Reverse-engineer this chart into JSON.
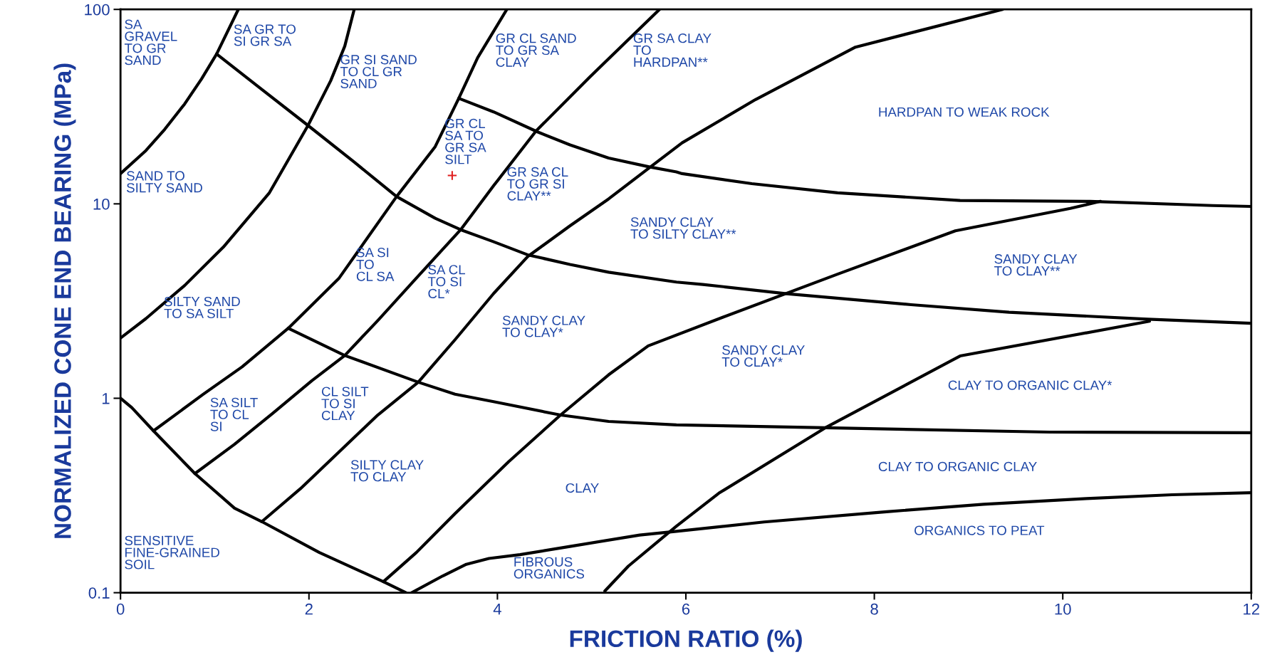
{
  "chart_data": {
    "type": "line",
    "xlabel": "FRICTION RATIO (%)",
    "ylabel": "NORMALIZED CONE END BEARING (MPa)",
    "xlim": [
      0,
      12
    ],
    "xticks": [
      0,
      2,
      4,
      6,
      8,
      10,
      12
    ],
    "ylim": [
      0.1,
      100
    ],
    "yticks": [
      {
        "value": 0.1,
        "label": "0.1"
      },
      1,
      10,
      100
    ],
    "log": "y",
    "grid": false,
    "line_style": "solid",
    "series": [
      {
        "color": "#000000",
        "x": [
          0,
          0.27,
          0.47,
          0.68,
          0.86,
          1.02,
          1.25
        ],
        "values": [
          14.3,
          18.8,
          24.2,
          32.6,
          43.9,
          59,
          100
        ]
      },
      {
        "color": "#000000",
        "x": [
          0,
          0.27,
          0.68,
          1.09,
          1.58,
          1.99,
          2.23,
          2.38,
          2.48
        ],
        "values": [
          2.04,
          2.57,
          3.8,
          5.98,
          11.4,
          25.3,
          42.9,
          64.7,
          100
        ]
      },
      {
        "color": "#000000",
        "x": [
          0.35,
          0.88,
          1.29,
          1.78,
          2.32,
          2.93,
          3.34,
          3.59,
          3.79,
          4.1
        ],
        "values": [
          0.68,
          1.05,
          1.45,
          2.29,
          4.15,
          10.9,
          19.7,
          34.9,
          56.4,
          100
        ]
      },
      {
        "color": "#000000",
        "x": [
          0.79,
          1.21,
          1.62,
          2.03,
          2.38,
          2.73,
          3.14,
          3.61,
          3.96,
          4.41,
          4.98,
          5.72
        ],
        "values": [
          0.41,
          0.58,
          0.84,
          1.23,
          1.66,
          2.51,
          4.15,
          7.36,
          12.4,
          23.7,
          44.9,
          100
        ]
      },
      {
        "color": "#000000",
        "x": [
          1.5,
          1.91,
          2.32,
          2.73,
          3.16,
          3.55,
          3.96,
          4.32,
          4.77,
          5.18,
          5.64,
          5.96,
          6.74,
          7.8,
          9.36
        ],
        "values": [
          0.232,
          0.343,
          0.53,
          0.82,
          1.21,
          2.0,
          3.46,
          5.35,
          7.71,
          10.6,
          15.7,
          20.6,
          34.4,
          64,
          100
        ]
      },
      {
        "color": "#000000",
        "x": [
          2.79,
          3.14,
          3.55,
          4.12,
          4.67,
          5.18,
          5.6,
          6.4,
          7.61,
          8.86,
          10.08,
          10.4
        ],
        "values": [
          0.114,
          0.161,
          0.255,
          0.472,
          0.82,
          1.32,
          1.86,
          2.62,
          4.35,
          7.26,
          9.48,
          10.3
        ]
      },
      {
        "color": "#000000",
        "x": [
          5.14,
          5.39,
          5.9,
          6.35,
          7.48,
          8.91,
          10.92
        ],
        "values": [
          0.102,
          0.137,
          0.22,
          0.325,
          0.705,
          1.65,
          2.49
        ]
      },
      {
        "color": "#000000",
        "x": [
          1.02,
          1.49,
          1.99,
          2.48,
          2.93,
          3.34,
          3.61,
          3.95,
          4.32,
          4.77,
          5.18,
          5.9,
          6.18,
          7.07,
          8.39,
          9.43,
          10.9,
          12
        ],
        "values": [
          59,
          39.1,
          25.3,
          16.4,
          10.9,
          8.43,
          7.36,
          6.41,
          5.47,
          4.88,
          4.45,
          3.96,
          3.85,
          3.45,
          3.03,
          2.77,
          2.55,
          2.43
        ]
      },
      {
        "color": "#000000",
        "x": [
          3.59,
          3.96,
          4.43,
          4.77,
          5.18,
          5.61,
          5.9,
          5.96,
          6.7,
          7.61,
          8.91,
          10.29,
          11.59,
          12
        ],
        "values": [
          34.9,
          29.7,
          23.4,
          20.1,
          17.2,
          15.5,
          14.6,
          14.3,
          12.7,
          11.4,
          10.4,
          10.3,
          9.8,
          9.7
        ]
      },
      {
        "color": "#000000",
        "x": [
          1.78,
          2.38,
          3.16,
          3.55,
          3.96,
          4.67,
          5.18,
          5.9,
          7.48,
          9.86,
          12
        ],
        "values": [
          2.29,
          1.66,
          1.21,
          1.05,
          0.96,
          0.82,
          0.76,
          0.73,
          0.705,
          0.67,
          0.665
        ]
      },
      {
        "color": "#000000",
        "x": [
          0,
          0.12,
          0.35,
          0.79,
          1.21,
          1.5,
          2.11,
          2.79,
          3.03
        ],
        "values": [
          1.0,
          0.895,
          0.68,
          0.41,
          0.272,
          0.232,
          0.161,
          0.114,
          0.1
        ]
      },
      {
        "color": "#000000",
        "x": [
          3.09,
          3.42,
          3.67,
          3.91,
          4.24,
          4.77,
          5.51,
          5.9,
          6.83,
          8.13,
          9.16,
          10.25,
          11.16,
          12
        ],
        "values": [
          0.1,
          0.122,
          0.14,
          0.15,
          0.157,
          0.173,
          0.198,
          0.207,
          0.231,
          0.261,
          0.285,
          0.305,
          0.319,
          0.327
        ]
      },
      {
        "type": "scatter",
        "marker": "cross",
        "color": "#e02020",
        "x": [
          3.52
        ],
        "values": [
          14.0
        ]
      }
    ],
    "annotations": [
      "SA\nGRAVEL\nTO GR\nSAND",
      "SA GR TO\nSI GR SA",
      "GR SI SAND\nTO CL GR\nSAND",
      "GR CL SAND\nTO GR SA\nCLAY",
      "GR SA CLAY\nTO\nHARDPAN**",
      "HARDPAN TO WEAK ROCK",
      "GR CL\nSA TO\nGR SA\nSILT",
      "SAND TO\nSILTY SAND",
      "GR SA CL\nTO GR SI\nCLAY**",
      "SANDY CLAY\nTO SILTY CLAY**",
      "SANDY CLAY\nTO CLAY**",
      "SA SI\nTO\nCL SA",
      "SA CL\nTO SI\nCL*",
      "SILTY SAND\nTO SA SILT",
      "SANDY CLAY\nTO CLAY*",
      "SANDY CLAY\nTO CLAY*",
      "CLAY TO ORGANIC CLAY*",
      "SA SILT\nTO CL\nSI",
      "CL SILT\nTO SI\nCLAY",
      "CLAY TO ORGANIC CLAY",
      "SILTY CLAY\nTO CLAY",
      "CLAY",
      "ORGANICS TO PEAT",
      "SENSITIVE\nFINE-GRAINED\nSOIL",
      "FIBROUS\nORGANICS"
    ]
  }
}
